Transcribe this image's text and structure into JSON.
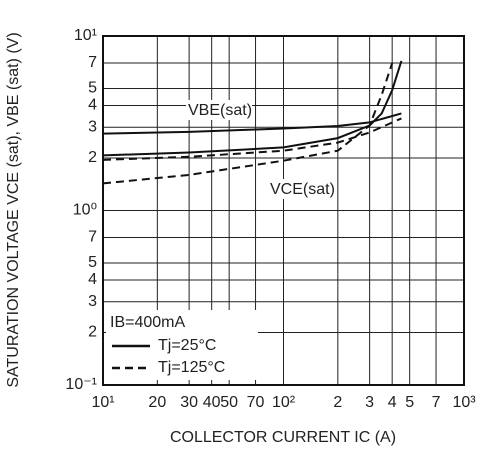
{
  "chart_data": {
    "type": "line",
    "xlabel": "COLLECTOR CURRENT   IC (A)",
    "ylabel": "SATURATION VOLTAGE   VCE (sat), VBE (sat) (V)",
    "xlim": [
      10,
      1000
    ],
    "ylim": [
      0.1,
      10
    ],
    "xlog": true,
    "ylog": true,
    "grid": true,
    "color": "#111111",
    "xticks": [
      {
        "value": 10,
        "label": "10¹"
      },
      20,
      30,
      40,
      50,
      70,
      {
        "value": 100,
        "label": "10²"
      },
      {
        "value": 200,
        "label": "2"
      },
      {
        "value": 300,
        "label": "3"
      },
      {
        "value": 400,
        "label": "4"
      },
      {
        "value": 500,
        "label": "5"
      },
      {
        "value": 700,
        "label": "7"
      },
      {
        "value": 1000,
        "label": "10³"
      }
    ],
    "yticks": [
      {
        "value": 10,
        "label": "10¹"
      },
      7,
      5,
      4,
      3,
      2,
      {
        "value": 1,
        "label": "10⁰"
      },
      {
        "value": 0.7,
        "label": "7"
      },
      {
        "value": 0.5,
        "label": "5"
      },
      {
        "value": 0.4,
        "label": "4"
      },
      {
        "value": 0.3,
        "label": "3"
      },
      {
        "value": 0.2,
        "label": "2"
      },
      {
        "value": 0.1,
        "label": "10⁻¹"
      }
    ],
    "legend": {
      "title": "IB=400mA",
      "corner": "lower left",
      "entries": [
        {
          "name": "Tj=25°C",
          "dashed": false
        },
        {
          "name": "Tj=125°C",
          "dashed": true
        }
      ]
    },
    "curves": [
      {
        "label": "VBE(sat)",
        "series": [
          {
            "x": [
              10,
              30,
              100,
              200,
              300,
              450
            ],
            "values": [
              2.76,
              2.82,
              2.95,
              3.05,
              3.2,
              3.6
            ]
          },
          {
            "x": [
              10,
              30,
              100,
              200,
              300,
              450
            ],
            "values": [
              1.95,
              2.03,
              2.2,
              2.45,
              2.8,
              3.37
            ]
          }
        ]
      },
      {
        "label": "VCE(sat)",
        "series": [
          {
            "x": [
              10,
              30,
              100,
              200,
              300,
              350,
              400,
              450
            ],
            "values": [
              2.07,
              2.15,
              2.3,
              2.6,
              3.07,
              3.6,
              4.9,
              7.2
            ]
          },
          {
            "x": [
              10,
              30,
              100,
              200,
              300,
              350,
              400
            ],
            "values": [
              1.43,
              1.6,
              1.93,
              2.2,
              3.07,
              4.6,
              7
            ]
          }
        ]
      }
    ]
  }
}
